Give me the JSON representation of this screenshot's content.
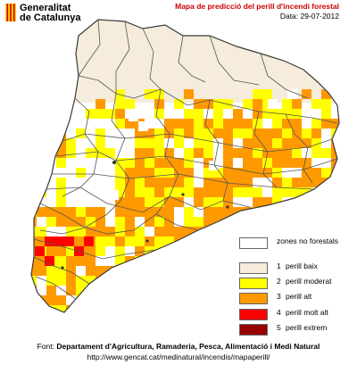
{
  "header": {
    "logo_line1": "Generalitat",
    "logo_line2": "de Catalunya",
    "title": "Mapa de predicció del perill d'incendi forestal",
    "date": "Data: 29-07-2012"
  },
  "legend": {
    "items": [
      {
        "num": "",
        "label": "zones no forestals",
        "color": "#ffffff"
      },
      {
        "num": "1",
        "label": "perill baix",
        "color": "#f5ecdc"
      },
      {
        "num": "2",
        "label": "perill moderat",
        "color": "#ffff00"
      },
      {
        "num": "3",
        "label": "perill alt",
        "color": "#ff9900"
      },
      {
        "num": "4",
        "label": "perill molt alt",
        "color": "#ff0000"
      },
      {
        "num": "5",
        "label": "perill extrem",
        "color": "#990000"
      }
    ]
  },
  "footer": {
    "source_prefix": "Font: ",
    "source_org": "Departament d'Agricultura, Ramaderia, Pesca, Alimentació i Medi Natural",
    "url": "http://www.gencat.cat/medinatural/incendis/mapaperill/"
  },
  "map_labels": {
    "city_marker": "●"
  },
  "colors": {
    "outline": "#3a3a3a",
    "border_inner": "#555555",
    "low": "#f5ecdc",
    "moderate": "#ffff00",
    "high": "#ff9900",
    "very_high": "#ff0000",
    "extreme": "#990000",
    "logo_red": "#cc0000",
    "logo_yellow": "#ffcc00"
  }
}
